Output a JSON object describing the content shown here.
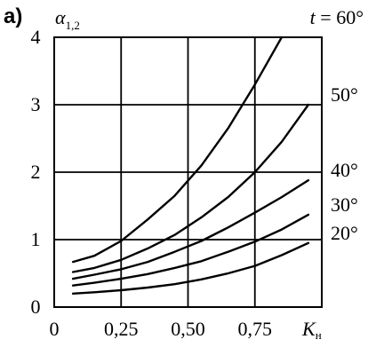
{
  "panel_label": "а)",
  "chart_data": {
    "type": "line",
    "title": {
      "var": "t",
      "eq": " = ",
      "value": "60°"
    },
    "ylabel": {
      "main": "α",
      "sub": "1,2"
    },
    "xlabel": {
      "main": "K",
      "sub": "н"
    },
    "xlim": [
      0,
      1.0
    ],
    "ylim": [
      0,
      4
    ],
    "grid": true,
    "x_ticks": [
      {
        "value": 0,
        "label": "0"
      },
      {
        "value": 0.25,
        "label": "0,25"
      },
      {
        "value": 0.5,
        "label": "0,50"
      },
      {
        "value": 0.75,
        "label": "0,75"
      }
    ],
    "y_ticks": [
      {
        "value": 0,
        "label": "0"
      },
      {
        "value": 1,
        "label": "1"
      },
      {
        "value": 2,
        "label": "2"
      },
      {
        "value": 3,
        "label": "3"
      },
      {
        "value": 4,
        "label": "4"
      }
    ],
    "series": [
      {
        "name": "60°",
        "points": [
          [
            0.07,
            0.67
          ],
          [
            0.15,
            0.76
          ],
          [
            0.25,
            0.98
          ],
          [
            0.35,
            1.3
          ],
          [
            0.45,
            1.65
          ],
          [
            0.55,
            2.1
          ],
          [
            0.65,
            2.65
          ],
          [
            0.75,
            3.3
          ],
          [
            0.85,
            4.0
          ]
        ]
      },
      {
        "name": "50°",
        "points": [
          [
            0.07,
            0.52
          ],
          [
            0.15,
            0.58
          ],
          [
            0.25,
            0.7
          ],
          [
            0.35,
            0.87
          ],
          [
            0.45,
            1.07
          ],
          [
            0.55,
            1.33
          ],
          [
            0.65,
            1.63
          ],
          [
            0.75,
            2.0
          ],
          [
            0.85,
            2.45
          ],
          [
            0.95,
            3.0
          ]
        ]
      },
      {
        "name": "40°",
        "points": [
          [
            0.07,
            0.42
          ],
          [
            0.15,
            0.48
          ],
          [
            0.25,
            0.56
          ],
          [
            0.35,
            0.67
          ],
          [
            0.45,
            0.82
          ],
          [
            0.55,
            0.98
          ],
          [
            0.65,
            1.18
          ],
          [
            0.75,
            1.4
          ],
          [
            0.85,
            1.63
          ],
          [
            0.95,
            1.88
          ]
        ]
      },
      {
        "name": "30°",
        "points": [
          [
            0.07,
            0.32
          ],
          [
            0.15,
            0.36
          ],
          [
            0.25,
            0.42
          ],
          [
            0.35,
            0.49
          ],
          [
            0.45,
            0.58
          ],
          [
            0.55,
            0.68
          ],
          [
            0.65,
            0.82
          ],
          [
            0.75,
            0.97
          ],
          [
            0.85,
            1.15
          ],
          [
            0.95,
            1.37
          ]
        ]
      },
      {
        "name": "20°",
        "points": [
          [
            0.07,
            0.2
          ],
          [
            0.15,
            0.22
          ],
          [
            0.25,
            0.25
          ],
          [
            0.35,
            0.29
          ],
          [
            0.45,
            0.34
          ],
          [
            0.55,
            0.41
          ],
          [
            0.65,
            0.5
          ],
          [
            0.75,
            0.61
          ],
          [
            0.85,
            0.77
          ],
          [
            0.95,
            0.95
          ]
        ]
      }
    ]
  }
}
